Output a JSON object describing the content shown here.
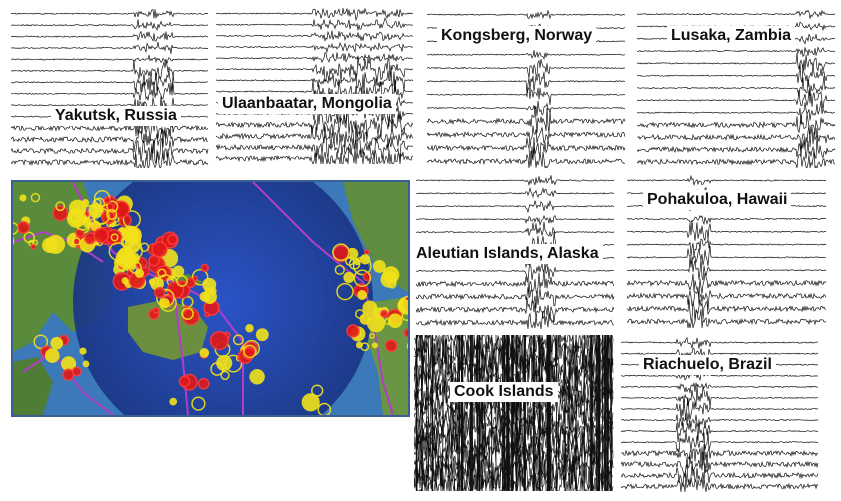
{
  "stations": [
    {
      "id": "yakutsk",
      "name": "Yakutsk, Russia"
    },
    {
      "id": "ulaanbaatar",
      "name": "Ulaanbaatar, Mongolia"
    },
    {
      "id": "kongsberg",
      "name": "Kongsberg, Norway"
    },
    {
      "id": "lusaka",
      "name": "Lusaka, Zambia"
    },
    {
      "id": "aleutian",
      "name": "Aleutian Islands, Alaska"
    },
    {
      "id": "pohakuloa",
      "name": "Pohakuloa, Hawaii"
    },
    {
      "id": "cook",
      "name": "Cook Islands"
    },
    {
      "id": "riachuelo",
      "name": "Riachuelo, Brazil"
    }
  ],
  "colors": {
    "ocean": "#1d3f9e",
    "land": "#5a8a3c",
    "plate_boundary": "#b03ec8",
    "quake_yellow": "#f2e21a",
    "quake_red": "#e01818",
    "trace": "#111111",
    "map_border": "#3a5f92"
  }
}
